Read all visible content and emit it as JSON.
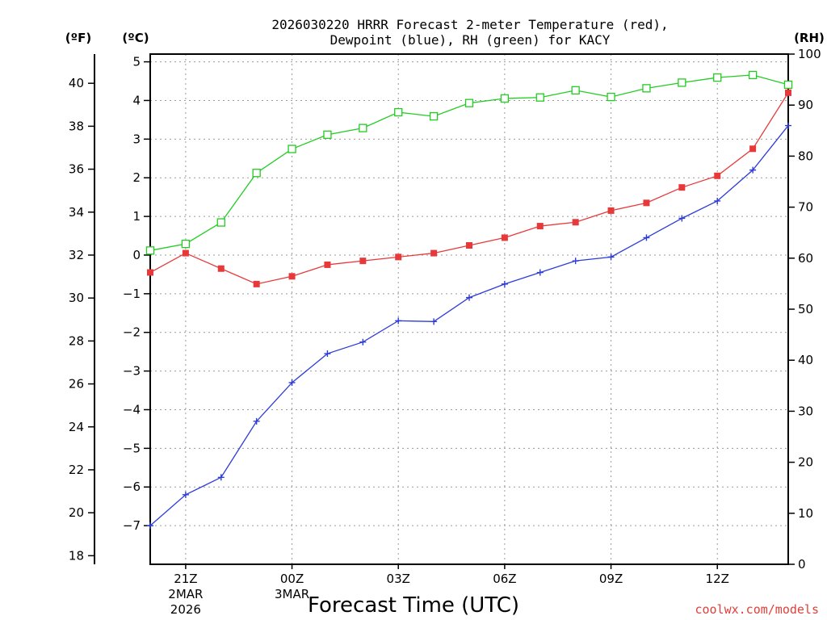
{
  "chart_data": {
    "type": "line",
    "title_line1": "2026030220 HRRR Forecast 2-meter Temperature (red),",
    "title_line2": "Dewpoint (blue), RH (green) for KACY",
    "left_outer_unit": "(ºF)",
    "left_inner_unit": "(ºC)",
    "right_unit": "(RH)",
    "xlabel": "Forecast Time (UTC)",
    "credit": "coolwx.com/models",
    "x_hours": [
      20,
      21,
      22,
      23,
      24,
      25,
      26,
      27,
      28,
      29,
      30,
      31,
      32,
      33,
      34,
      35,
      36,
      37,
      38
    ],
    "x_range": [
      20,
      38
    ],
    "x_ticks": [
      {
        "hour": 21,
        "label": "21Z",
        "sub1": "2MAR",
        "sub2": "2026"
      },
      {
        "hour": 24,
        "label": "00Z",
        "sub1": "3MAR",
        "sub2": ""
      },
      {
        "hour": 27,
        "label": "03Z",
        "sub1": "",
        "sub2": ""
      },
      {
        "hour": 30,
        "label": "06Z",
        "sub1": "",
        "sub2": ""
      },
      {
        "hour": 33,
        "label": "09Z",
        "sub1": "",
        "sub2": ""
      },
      {
        "hour": 36,
        "label": "12Z",
        "sub1": "",
        "sub2": ""
      }
    ],
    "celsius_range": [
      -8,
      5.2
    ],
    "celsius_ticks": [
      "5",
      "4",
      "3",
      "2",
      "1",
      "0",
      "−1",
      "−2",
      "−3",
      "−4",
      "−5",
      "−6",
      "−7"
    ],
    "fahrenheit_ticks": [
      "40",
      "38",
      "36",
      "34",
      "32",
      "30",
      "28",
      "26",
      "24",
      "22",
      "20",
      "18"
    ],
    "rh_range": [
      0,
      100
    ],
    "rh_ticks": [
      "100",
      "90",
      "80",
      "70",
      "60",
      "50",
      "40",
      "30",
      "20",
      "10",
      "0"
    ],
    "series": [
      {
        "name": "Temperature",
        "color": "#e8393a",
        "marker": "filled-square",
        "axis": "celsius",
        "values": [
          -0.45,
          0.05,
          -0.35,
          -0.75,
          -0.55,
          -0.25,
          -0.15,
          -0.05,
          0.05,
          0.25,
          0.45,
          0.75,
          0.85,
          1.15,
          1.35,
          1.75,
          2.05,
          2.75,
          4.2
        ]
      },
      {
        "name": "Dewpoint",
        "color": "#2d3cd8",
        "marker": "plus",
        "axis": "celsius",
        "values": [
          -7.0,
          -6.2,
          -5.75,
          -4.3,
          -3.3,
          -2.55,
          -2.25,
          -1.7,
          -1.72,
          -1.1,
          -0.75,
          -0.45,
          -0.15,
          -0.05,
          0.45,
          0.95,
          1.4,
          2.2,
          3.35
        ]
      },
      {
        "name": "RH",
        "color": "#22cc22",
        "marker": "open-square",
        "axis": "rh",
        "values": [
          61.5,
          62.8,
          67.0,
          76.7,
          81.4,
          84.2,
          85.5,
          88.6,
          87.8,
          90.4,
          91.3,
          91.5,
          92.9,
          91.6,
          93.3,
          94.4,
          95.4,
          95.9,
          94.0
        ]
      }
    ]
  }
}
